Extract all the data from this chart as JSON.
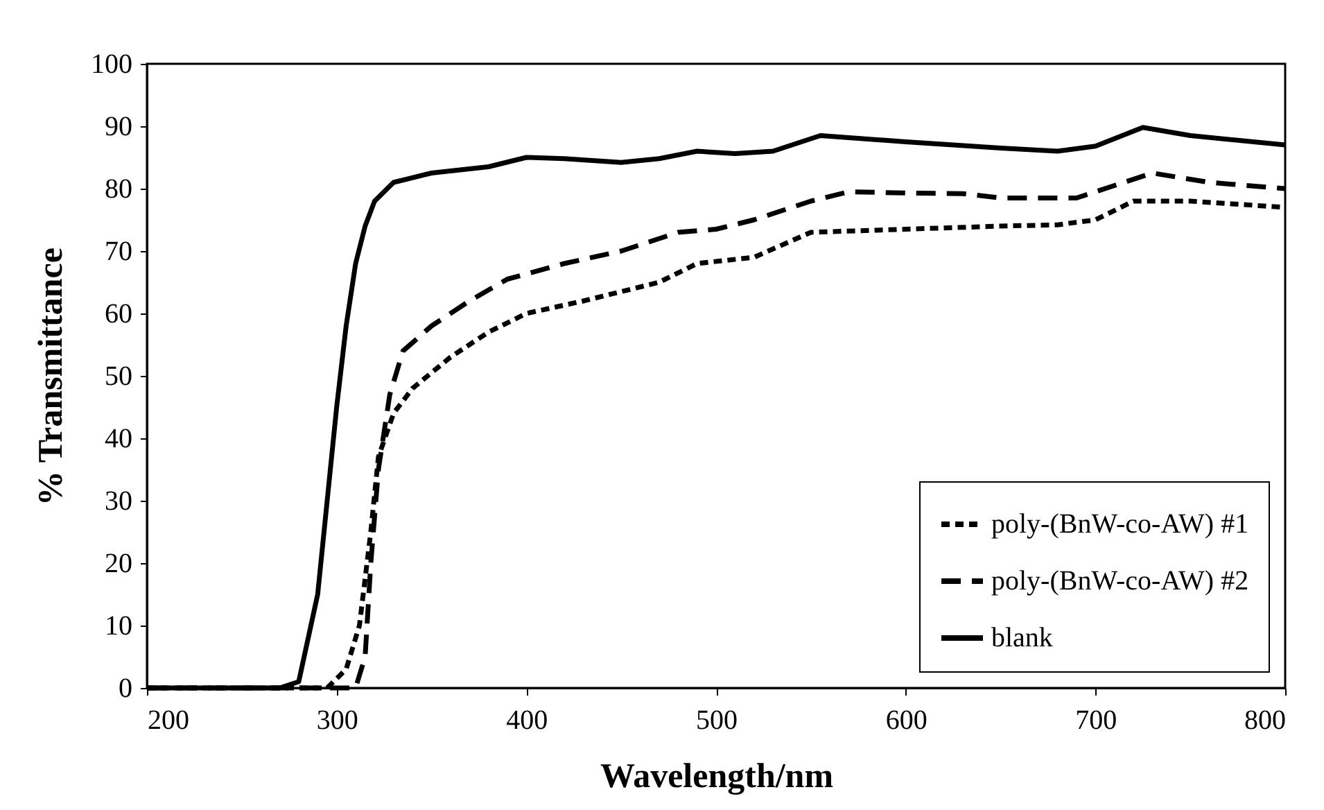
{
  "chart_data": {
    "type": "line",
    "xlabel": "Wavelength/nm",
    "ylabel": "% Transmittance",
    "xlim": [
      200,
      800
    ],
    "ylim": [
      0,
      100
    ],
    "xticks": [
      200,
      300,
      400,
      500,
      600,
      700,
      800
    ],
    "yticks": [
      0,
      10,
      20,
      30,
      40,
      50,
      60,
      70,
      80,
      90,
      100
    ],
    "legend": "bottom right",
    "marker": "none",
    "series": [
      {
        "name": "poly-(BnW-co-AW) #1",
        "color": "#000000",
        "line_style": "dotted",
        "x": [
          200,
          295,
          305,
          312,
          318,
          322,
          330,
          340,
          360,
          380,
          400,
          430,
          470,
          490,
          520,
          550,
          600,
          650,
          680,
          700,
          720,
          750,
          800
        ],
        "values": [
          0,
          0,
          3,
          10,
          25,
          37,
          44,
          48,
          53,
          57,
          60,
          62,
          65,
          68,
          69,
          73,
          73.5,
          74,
          74.2,
          75,
          78,
          78,
          77
        ]
      },
      {
        "name": "poly-(BnW-co-AW) #2",
        "color": "#000000",
        "line_style": "dashed",
        "x": [
          200,
          310,
          315,
          318,
          322,
          328,
          335,
          350,
          370,
          390,
          420,
          450,
          480,
          500,
          520,
          550,
          570,
          600,
          630,
          650,
          690,
          710,
          730,
          760,
          800
        ],
        "values": [
          0,
          0,
          5,
          20,
          35,
          47,
          54,
          58,
          62,
          65.5,
          68,
          70,
          73,
          73.5,
          75,
          78,
          79.5,
          79.3,
          79.2,
          78.5,
          78.5,
          80.5,
          82.5,
          81,
          80
        ]
      },
      {
        "name": "blank",
        "color": "#000000",
        "line_style": "solid",
        "x": [
          200,
          270,
          280,
          290,
          295,
          300,
          305,
          310,
          315,
          320,
          330,
          350,
          380,
          400,
          420,
          450,
          470,
          490,
          510,
          530,
          555,
          600,
          650,
          680,
          700,
          725,
          750,
          800
        ],
        "values": [
          0,
          0,
          1,
          15,
          30,
          45,
          58,
          68,
          74,
          78,
          81,
          82.5,
          83.5,
          85,
          84.8,
          84.2,
          84.8,
          86,
          85.6,
          86,
          88.5,
          87.5,
          86.5,
          86,
          86.8,
          89.8,
          88.5,
          87
        ]
      }
    ]
  }
}
